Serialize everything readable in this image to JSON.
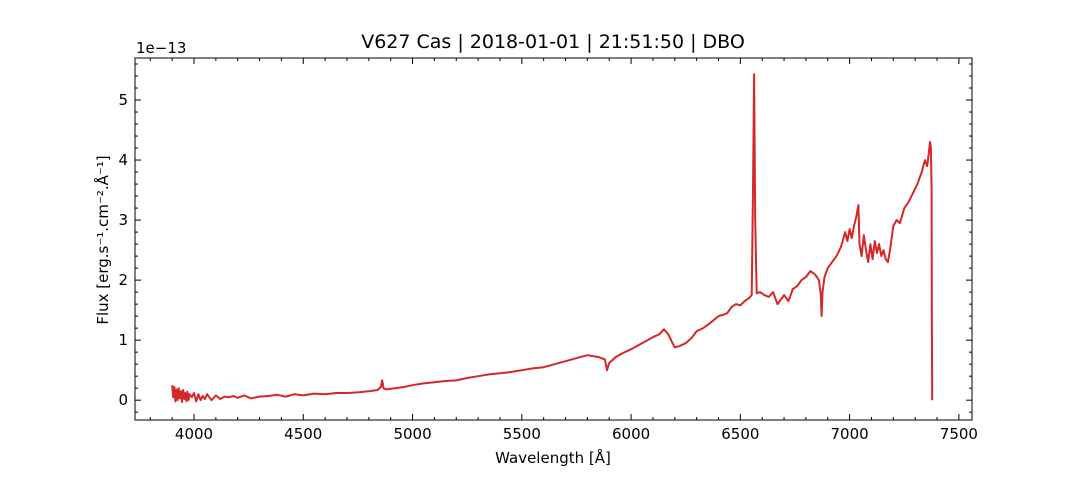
{
  "chart_data": {
    "type": "line",
    "title": "V627 Cas | 2018-01-01 | 21:51:50 | DBO",
    "xlabel": "Wavelength [Å]",
    "ylabel": "Flux [erg.s⁻¹.cm⁻².Å⁻¹]",
    "y_offset_label": "1e−13",
    "xlim": [
      3730,
      7560
    ],
    "ylim": [
      -0.33,
      5.7
    ],
    "xticks": [
      4000,
      4500,
      5000,
      5500,
      6000,
      6500,
      7000,
      7500
    ],
    "yticks": [
      0,
      1,
      2,
      3,
      4,
      5
    ],
    "grid": false,
    "legend": "none",
    "line_color": "#d62728",
    "series": [
      {
        "x": [
          3900,
          3905,
          3910,
          3915,
          3920,
          3925,
          3930,
          3935,
          3940,
          3945,
          3950,
          3955,
          3960,
          3965,
          3970,
          3975,
          3980,
          3990,
          4000,
          4010,
          4020,
          4030,
          4040,
          4050,
          4060,
          4080,
          4100,
          4120,
          4140,
          4160,
          4180,
          4200,
          4230,
          4260,
          4300,
          4340,
          4380,
          4420,
          4460,
          4500,
          4550,
          4600,
          4650,
          4700,
          4750,
          4800,
          4840,
          4855,
          4861,
          4867,
          4880,
          4920,
          4960,
          5000,
          5050,
          5100,
          5150,
          5200,
          5250,
          5300,
          5350,
          5400,
          5450,
          5500,
          5550,
          5600,
          5650,
          5700,
          5750,
          5800,
          5850,
          5880,
          5890,
          5900,
          5930,
          5960,
          6000,
          6050,
          6100,
          6130,
          6150,
          6170,
          6190,
          6200,
          6220,
          6250,
          6280,
          6300,
          6330,
          6360,
          6400,
          6420,
          6440,
          6460,
          6480,
          6500,
          6520,
          6540,
          6552,
          6558,
          6563,
          6568,
          6575,
          6590,
          6610,
          6630,
          6650,
          6670,
          6700,
          6720,
          6740,
          6760,
          6780,
          6800,
          6820,
          6840,
          6860,
          6868,
          6872,
          6876,
          6885,
          6900,
          6920,
          6940,
          6960,
          6980,
          6990,
          7000,
          7010,
          7020,
          7030,
          7040,
          7045,
          7055,
          7065,
          7075,
          7085,
          7095,
          7105,
          7115,
          7125,
          7135,
          7145,
          7155,
          7165,
          7175,
          7185,
          7200,
          7215,
          7230,
          7250,
          7270,
          7290,
          7310,
          7330,
          7345,
          7355,
          7362,
          7368,
          7372,
          7375,
          7376,
          7378
        ],
        "y": [
          0.25,
          0.05,
          0.22,
          -0.02,
          0.18,
          0.0,
          0.2,
          0.03,
          0.15,
          -0.03,
          0.17,
          0.02,
          0.12,
          -0.02,
          0.14,
          0.0,
          0.1,
          0.05,
          0.12,
          -0.02,
          0.1,
          0.0,
          0.07,
          0.02,
          0.1,
          0.0,
          0.08,
          0.02,
          0.06,
          0.05,
          0.07,
          0.04,
          0.08,
          0.03,
          0.06,
          0.07,
          0.09,
          0.06,
          0.1,
          0.08,
          0.11,
          0.1,
          0.12,
          0.12,
          0.13,
          0.15,
          0.17,
          0.22,
          0.33,
          0.2,
          0.18,
          0.2,
          0.22,
          0.25,
          0.28,
          0.3,
          0.32,
          0.33,
          0.37,
          0.4,
          0.43,
          0.45,
          0.47,
          0.5,
          0.53,
          0.55,
          0.6,
          0.65,
          0.7,
          0.75,
          0.72,
          0.68,
          0.5,
          0.62,
          0.72,
          0.78,
          0.85,
          0.95,
          1.05,
          1.1,
          1.18,
          1.1,
          0.95,
          0.88,
          0.9,
          0.95,
          1.05,
          1.15,
          1.2,
          1.28,
          1.4,
          1.42,
          1.45,
          1.55,
          1.6,
          1.58,
          1.65,
          1.7,
          1.75,
          3.5,
          5.43,
          3.0,
          1.78,
          1.8,
          1.75,
          1.72,
          1.8,
          1.6,
          1.75,
          1.65,
          1.85,
          1.9,
          2.0,
          2.05,
          2.15,
          2.1,
          2.0,
          1.75,
          1.4,
          1.8,
          2.05,
          2.2,
          2.3,
          2.4,
          2.55,
          2.8,
          2.65,
          2.85,
          2.7,
          2.9,
          3.05,
          3.25,
          2.6,
          2.4,
          2.75,
          2.5,
          2.3,
          2.6,
          2.35,
          2.65,
          2.45,
          2.6,
          2.4,
          2.5,
          2.35,
          2.3,
          2.5,
          2.9,
          3.0,
          2.95,
          3.2,
          3.3,
          3.45,
          3.6,
          3.8,
          4.0,
          3.9,
          4.1,
          4.3,
          4.2,
          3.5,
          1.5,
          0.0
        ]
      }
    ]
  }
}
